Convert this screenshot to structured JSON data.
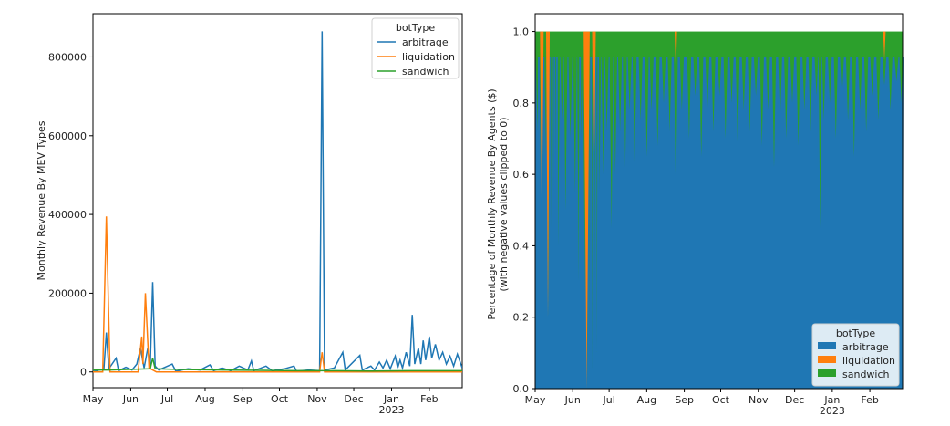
{
  "chart_data": [
    {
      "type": "line",
      "ylabel": "Monthly Revenue By MEV Types",
      "xlabel": "",
      "ylim": [
        -40000,
        910000
      ],
      "yticks": [
        0,
        200000,
        400000,
        600000,
        800000
      ],
      "ytick_labels": [
        "0",
        "200000",
        "400000",
        "600000",
        "800000"
      ],
      "x_range": [
        "2022-05-01",
        "2023-02-28"
      ],
      "xticks": [
        {
          "date": "2022-05-01",
          "label": "May"
        },
        {
          "date": "2022-06-01",
          "label": "Jun"
        },
        {
          "date": "2022-07-01",
          "label": "Jul"
        },
        {
          "date": "2022-08-01",
          "label": "Aug"
        },
        {
          "date": "2022-09-01",
          "label": "Sep"
        },
        {
          "date": "2022-10-01",
          "label": "Oct"
        },
        {
          "date": "2022-11-01",
          "label": "Nov"
        },
        {
          "date": "2022-12-01",
          "label": "Dec"
        },
        {
          "date": "2023-01-01",
          "label": "Jan"
        },
        {
          "date": "2023-02-01",
          "label": "Feb"
        }
      ],
      "year_label": "2023",
      "legend": {
        "title": "botType",
        "position": "top-right"
      },
      "series": [
        {
          "name": "arbitrage",
          "color": "#1f77b4",
          "points": [
            [
              "2022-05-01",
              0
            ],
            [
              "2022-05-06",
              5000
            ],
            [
              "2022-05-10",
              8000
            ],
            [
              "2022-05-12",
              100000
            ],
            [
              "2022-05-14",
              8000
            ],
            [
              "2022-05-20",
              35000
            ],
            [
              "2022-05-22",
              3000
            ],
            [
              "2022-05-28",
              12000
            ],
            [
              "2022-06-02",
              5000
            ],
            [
              "2022-06-06",
              20000
            ],
            [
              "2022-06-09",
              60000
            ],
            [
              "2022-06-12",
              10000
            ],
            [
              "2022-06-15",
              60000
            ],
            [
              "2022-06-17",
              15000
            ],
            [
              "2022-06-19",
              228000
            ],
            [
              "2022-06-21",
              15000
            ],
            [
              "2022-06-24",
              5000
            ],
            [
              "2022-07-05",
              20000
            ],
            [
              "2022-07-08",
              2000
            ],
            [
              "2022-07-18",
              8000
            ],
            [
              "2022-07-28",
              5000
            ],
            [
              "2022-08-05",
              18000
            ],
            [
              "2022-08-08",
              3000
            ],
            [
              "2022-08-15",
              10000
            ],
            [
              "2022-08-22",
              3000
            ],
            [
              "2022-08-29",
              15000
            ],
            [
              "2022-09-05",
              5000
            ],
            [
              "2022-09-08",
              28000
            ],
            [
              "2022-09-10",
              3000
            ],
            [
              "2022-09-20",
              15000
            ],
            [
              "2022-09-25",
              3000
            ],
            [
              "2022-10-05",
              8000
            ],
            [
              "2022-10-13",
              15000
            ],
            [
              "2022-10-15",
              2000
            ],
            [
              "2022-10-25",
              5000
            ],
            [
              "2022-11-03",
              3000
            ],
            [
              "2022-11-05",
              865000
            ],
            [
              "2022-11-07",
              5000
            ],
            [
              "2022-11-15",
              10000
            ],
            [
              "2022-11-22",
              50000
            ],
            [
              "2022-11-24",
              5000
            ],
            [
              "2022-12-06",
              42000
            ],
            [
              "2022-12-08",
              5000
            ],
            [
              "2022-12-15",
              15000
            ],
            [
              "2022-12-18",
              5000
            ],
            [
              "2022-12-22",
              25000
            ],
            [
              "2022-12-25",
              10000
            ],
            [
              "2022-12-28",
              30000
            ],
            [
              "2022-12-31",
              8000
            ],
            [
              "2023-01-04",
              40000
            ],
            [
              "2023-01-06",
              10000
            ],
            [
              "2023-01-08",
              30000
            ],
            [
              "2023-01-10",
              10000
            ],
            [
              "2023-01-13",
              50000
            ],
            [
              "2023-01-16",
              15000
            ],
            [
              "2023-01-18",
              145000
            ],
            [
              "2023-01-20",
              20000
            ],
            [
              "2023-01-23",
              60000
            ],
            [
              "2023-01-25",
              20000
            ],
            [
              "2023-01-27",
              80000
            ],
            [
              "2023-01-29",
              30000
            ],
            [
              "2023-02-01",
              90000
            ],
            [
              "2023-02-03",
              35000
            ],
            [
              "2023-02-06",
              70000
            ],
            [
              "2023-02-09",
              30000
            ],
            [
              "2023-02-12",
              50000
            ],
            [
              "2023-02-15",
              20000
            ],
            [
              "2023-02-18",
              40000
            ],
            [
              "2023-02-21",
              15000
            ],
            [
              "2023-02-24",
              45000
            ],
            [
              "2023-02-28",
              10000
            ]
          ]
        },
        {
          "name": "liquidation",
          "color": "#ff7f0e",
          "points": [
            [
              "2022-05-01",
              0
            ],
            [
              "2022-05-09",
              0
            ],
            [
              "2022-05-12",
              395000
            ],
            [
              "2022-05-15",
              0
            ],
            [
              "2022-06-07",
              0
            ],
            [
              "2022-06-10",
              90000
            ],
            [
              "2022-06-11",
              20000
            ],
            [
              "2022-06-13",
              200000
            ],
            [
              "2022-06-16",
              10000
            ],
            [
              "2022-06-22",
              0
            ],
            [
              "2022-11-03",
              0
            ],
            [
              "2022-11-05",
              50000
            ],
            [
              "2022-11-07",
              0
            ],
            [
              "2023-02-28",
              0
            ]
          ]
        },
        {
          "name": "sandwich",
          "color": "#2ca02c",
          "points": [
            [
              "2022-05-01",
              5000
            ],
            [
              "2022-05-15",
              5000
            ],
            [
              "2022-06-17",
              8000
            ],
            [
              "2022-06-19",
              35000
            ],
            [
              "2022-06-21",
              8000
            ],
            [
              "2022-07-15",
              6000
            ],
            [
              "2022-08-15",
              5000
            ],
            [
              "2022-09-15",
              4000
            ],
            [
              "2022-10-15",
              3000
            ],
            [
              "2022-11-15",
              3000
            ],
            [
              "2022-12-15",
              2500
            ],
            [
              "2023-01-15",
              3000
            ],
            [
              "2023-02-28",
              3000
            ]
          ]
        }
      ]
    },
    {
      "type": "area",
      "stacked": true,
      "ylabel": "Percentage of Monthly Revenue By Agents ($)",
      "ylabel2": "(with negative values clipped to 0)",
      "xlabel": "",
      "ylim": [
        0,
        1.05
      ],
      "yticks": [
        0,
        0.2,
        0.4,
        0.6,
        0.8,
        1.0
      ],
      "ytick_labels": [
        "0.0",
        "0.2",
        "0.4",
        "0.6",
        "0.8",
        "1.0"
      ],
      "x_range": [
        "2022-05-01",
        "2023-02-28"
      ],
      "xticks": [
        {
          "date": "2022-05-01",
          "label": "May"
        },
        {
          "date": "2022-06-01",
          "label": "Jun"
        },
        {
          "date": "2022-07-01",
          "label": "Jul"
        },
        {
          "date": "2022-08-01",
          "label": "Aug"
        },
        {
          "date": "2022-09-01",
          "label": "Sep"
        },
        {
          "date": "2022-10-01",
          "label": "Oct"
        },
        {
          "date": "2022-11-01",
          "label": "Nov"
        },
        {
          "date": "2022-12-01",
          "label": "Dec"
        },
        {
          "date": "2023-01-01",
          "label": "Jan"
        },
        {
          "date": "2023-02-01",
          "label": "Feb"
        }
      ],
      "year_label": "2023",
      "legend": {
        "title": "botType",
        "position": "lower-right"
      },
      "series_names": [
        "arbitrage",
        "liquidation",
        "sandwich"
      ],
      "series_colors": [
        "#1f77b4",
        "#ff7f0e",
        "#2ca02c"
      ],
      "arbitrage_baseline": 0.93,
      "arbitrage_dips": [
        [
          "2022-05-03",
          0.72
        ],
        [
          "2022-05-05",
          0.6
        ],
        [
          "2022-05-07",
          0.55
        ],
        [
          "2022-05-09",
          0.85
        ],
        [
          "2022-05-10",
          0.65
        ],
        [
          "2022-05-12",
          0.2
        ],
        [
          "2022-05-14",
          0.45
        ],
        [
          "2022-05-16",
          0.55
        ],
        [
          "2022-05-18",
          0.65
        ],
        [
          "2022-05-20",
          0.4
        ],
        [
          "2022-05-23",
          0.75
        ],
        [
          "2022-05-26",
          0.5
        ],
        [
          "2022-05-30",
          0.7
        ],
        [
          "2022-06-03",
          0.55
        ],
        [
          "2022-06-06",
          0.3
        ],
        [
          "2022-06-08",
          0.7
        ],
        [
          "2022-06-11",
          0.25
        ],
        [
          "2022-06-13",
          0.0
        ],
        [
          "2022-06-15",
          0.15
        ],
        [
          "2022-06-17",
          0.03
        ],
        [
          "2022-06-19",
          0.3
        ],
        [
          "2022-06-21",
          0.1
        ],
        [
          "2022-06-23",
          0.55
        ],
        [
          "2022-06-26",
          0.6
        ],
        [
          "2022-06-29",
          0.72
        ],
        [
          "2022-07-03",
          0.45
        ],
        [
          "2022-07-06",
          0.6
        ],
        [
          "2022-07-10",
          0.72
        ],
        [
          "2022-07-14",
          0.55
        ],
        [
          "2022-07-18",
          0.78
        ],
        [
          "2022-07-22",
          0.62
        ],
        [
          "2022-07-27",
          0.75
        ],
        [
          "2022-08-01",
          0.65
        ],
        [
          "2022-08-05",
          0.78
        ],
        [
          "2022-08-10",
          0.68
        ],
        [
          "2022-08-15",
          0.8
        ],
        [
          "2022-08-20",
          0.72
        ],
        [
          "2022-08-25",
          0.55
        ],
        [
          "2022-08-30",
          0.78
        ],
        [
          "2022-09-05",
          0.7
        ],
        [
          "2022-09-10",
          0.82
        ],
        [
          "2022-09-15",
          0.65
        ],
        [
          "2022-09-20",
          0.78
        ],
        [
          "2022-09-25",
          0.72
        ],
        [
          "2022-09-30",
          0.82
        ],
        [
          "2022-10-05",
          0.7
        ],
        [
          "2022-10-10",
          0.8
        ],
        [
          "2022-10-15",
          0.68
        ],
        [
          "2022-10-20",
          0.78
        ],
        [
          "2022-10-25",
          0.72
        ],
        [
          "2022-10-30",
          0.82
        ],
        [
          "2022-11-04",
          0.68
        ],
        [
          "2022-11-09",
          0.78
        ],
        [
          "2022-11-14",
          0.62
        ],
        [
          "2022-11-19",
          0.75
        ],
        [
          "2022-11-24",
          0.7
        ],
        [
          "2022-11-29",
          0.8
        ],
        [
          "2022-12-04",
          0.68
        ],
        [
          "2022-12-09",
          0.78
        ],
        [
          "2022-12-14",
          0.72
        ],
        [
          "2022-12-19",
          0.82
        ],
        [
          "2022-12-22",
          0.45
        ],
        [
          "2022-12-25",
          0.75
        ],
        [
          "2022-12-30",
          0.8
        ],
        [
          "2023-01-04",
          0.7
        ],
        [
          "2023-01-09",
          0.82
        ],
        [
          "2023-01-14",
          0.75
        ],
        [
          "2023-01-19",
          0.65
        ],
        [
          "2023-01-24",
          0.78
        ],
        [
          "2023-01-29",
          0.72
        ],
        [
          "2023-02-03",
          0.82
        ],
        [
          "2023-02-08",
          0.75
        ],
        [
          "2023-02-13",
          0.85
        ],
        [
          "2023-02-18",
          0.78
        ],
        [
          "2023-02-23",
          0.86
        ],
        [
          "2023-02-27",
          0.8
        ]
      ],
      "liquidation_spikes": [
        {
          "start": "2022-05-05",
          "end": "2022-05-08",
          "bottom": 0.45
        },
        {
          "start": "2022-05-10",
          "end": "2022-05-13",
          "bottom": 0.2
        },
        {
          "start": "2022-06-10",
          "end": "2022-06-15",
          "bottom": 0.0
        },
        {
          "start": "2022-06-17",
          "end": "2022-06-20",
          "bottom": 0.55
        },
        {
          "start": "2022-08-24",
          "end": "2022-08-26",
          "bottom": 0.88
        },
        {
          "start": "2023-02-12",
          "end": "2023-02-14",
          "bottom": 0.92
        }
      ]
    }
  ]
}
